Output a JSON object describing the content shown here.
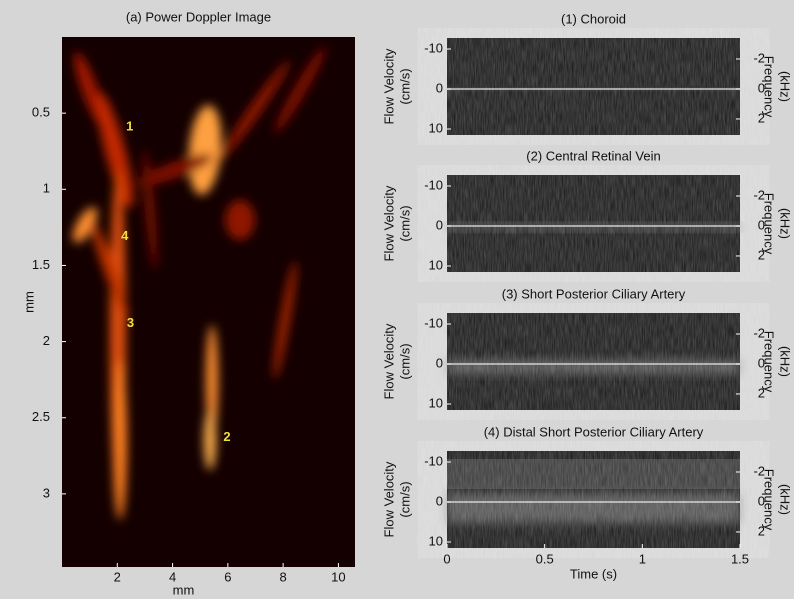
{
  "chart_data": [
    {
      "type": "image",
      "title": "(a) Power Doppler Image",
      "xlabel": "mm",
      "ylabel": "mm",
      "xlim": [
        0,
        10.6
      ],
      "ylim": [
        0,
        3.48
      ],
      "xticks": [
        2,
        4,
        6,
        8,
        10
      ],
      "yticks": [
        0.5,
        1,
        1.5,
        2,
        2.5,
        3
      ],
      "annotations": [
        {
          "text": "1",
          "x": 2.45,
          "y": 0.59
        },
        {
          "text": "4",
          "x": 2.27,
          "y": 1.31
        },
        {
          "text": "3",
          "x": 2.48,
          "y": 1.88
        },
        {
          "text": "2",
          "x": 5.97,
          "y": 2.63
        }
      ]
    },
    {
      "type": "spectrogram",
      "title": "(1) Choroid",
      "ylabel": [
        "Flow Velocity",
        "(cm/s)"
      ],
      "y2label": [
        "Frequency",
        "(kHz)"
      ],
      "xlim": [
        0,
        1.5
      ],
      "ylim": [
        -12.75,
        11.5
      ],
      "yticks": [
        -10,
        0,
        10
      ],
      "y2lim": [
        -3.4,
        3.07
      ],
      "y2ticks": [
        -2,
        0,
        2
      ]
    },
    {
      "type": "spectrogram",
      "title": "(2) Central Retinal Vein",
      "ylabel": [
        "Flow Velocity",
        "(cm/s)"
      ],
      "y2label": [
        "Frequency",
        "(kHz)"
      ],
      "xlim": [
        0,
        1.5
      ],
      "ylim": [
        -12.75,
        11.5
      ],
      "yticks": [
        -10,
        0,
        10
      ],
      "y2lim": [
        -3.4,
        3.07
      ],
      "y2ticks": [
        -2,
        0,
        2
      ]
    },
    {
      "type": "spectrogram",
      "title": "(3) Short Posterior Ciliary Artery",
      "ylabel": [
        "Flow Velocity",
        "(cm/s)"
      ],
      "y2label": [
        "Frequency",
        "(kHz)"
      ],
      "xlim": [
        0,
        1.5
      ],
      "ylim": [
        -12.75,
        11.5
      ],
      "yticks": [
        -10,
        0,
        10
      ],
      "y2lim": [
        -3.4,
        3.07
      ],
      "y2ticks": [
        -2,
        0,
        2
      ]
    },
    {
      "type": "spectrogram",
      "title": "(4) Distal Short Posterior Ciliary Artery",
      "ylabel": [
        "Flow Velocity",
        "(cm/s)"
      ],
      "y2label": [
        "Frequency",
        "(kHz)"
      ],
      "xlim": [
        0,
        1.5
      ],
      "ylim": [
        -12.75,
        11.5
      ],
      "yticks": [
        -10,
        0,
        10
      ],
      "y2lim": [
        -3.4,
        3.07
      ],
      "y2ticks": [
        -2,
        0,
        2
      ],
      "xticks": [
        0,
        0.5,
        1,
        1.5
      ],
      "xlabel": "Time (s)"
    }
  ]
}
